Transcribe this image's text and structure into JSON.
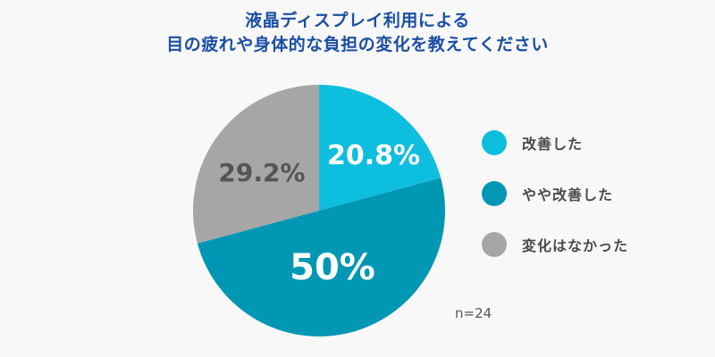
{
  "title": {
    "line1": "液晶ディスプレイ利用による",
    "line2": "目の疲れや身体的な負担の変化を教えてください"
  },
  "legend": [
    {
      "label": "改善した",
      "color": "#0ebedf"
    },
    {
      "label": "やや改善した",
      "color": "#0097b4"
    },
    {
      "label": "変化はなかった",
      "color": "#a6a6a6"
    }
  ],
  "slice_labels": {
    "improved": "20.8%",
    "somewhat_improved": "50%",
    "no_change": "29.2%"
  },
  "sample_size": "n=24",
  "chart_data": {
    "type": "pie",
    "title": "液晶ディスプレイ利用による目の疲れや身体的な負担の変化を教えてください",
    "categories": [
      "改善した",
      "やや改善した",
      "変化はなかった"
    ],
    "values": [
      20.8,
      50,
      29.2
    ],
    "unit": "%",
    "colors": [
      "#0ebedf",
      "#0097b4",
      "#a6a6a6"
    ],
    "start_angle": "12 o'clock, clockwise",
    "legend_position": "right",
    "annotations": [
      "n=24"
    ]
  }
}
